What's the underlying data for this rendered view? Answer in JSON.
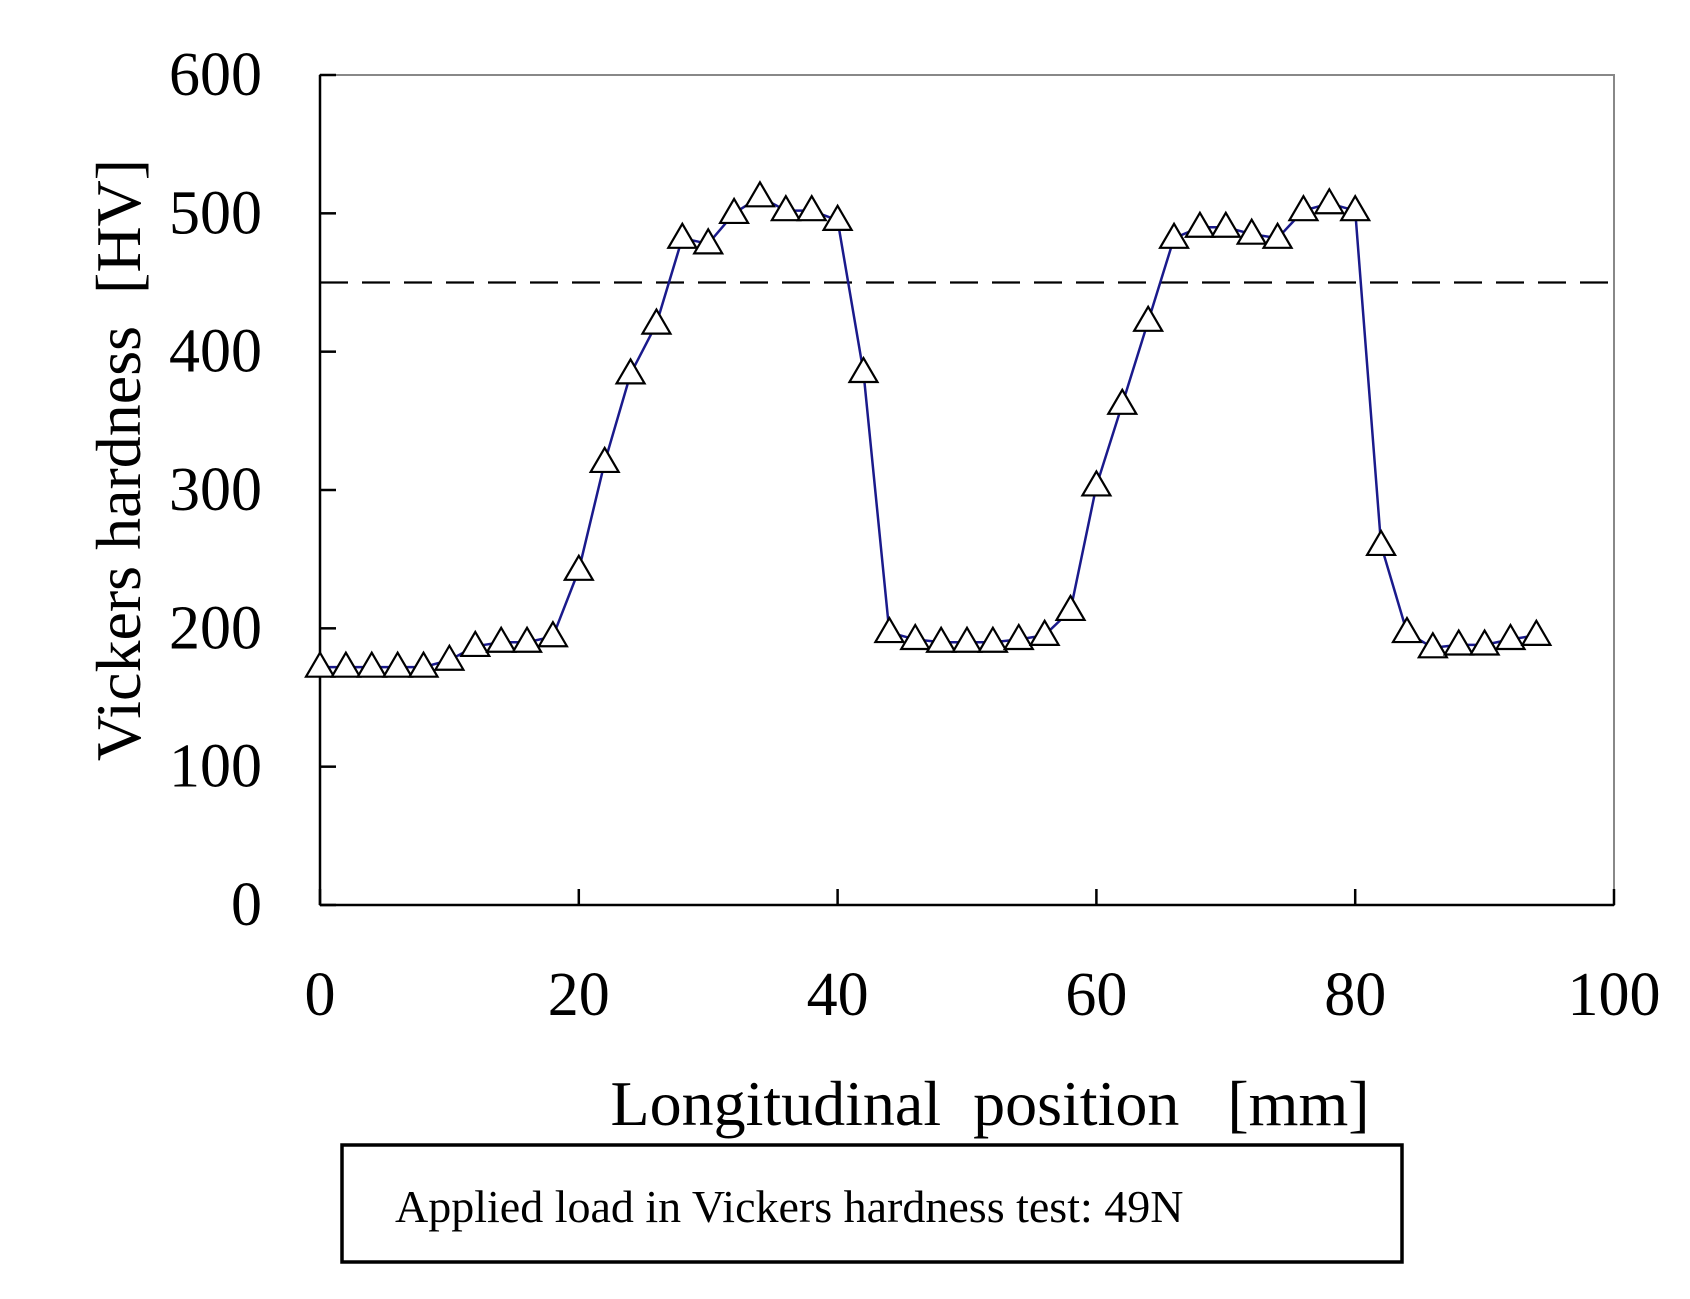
{
  "chart_data": {
    "type": "line",
    "title": "",
    "xlabel": "Longitudinal  position   [mm]",
    "ylabel": "Vickers hardness  [HV]",
    "xlim": [
      0,
      100
    ],
    "ylim": [
      0,
      600
    ],
    "xticks": [
      0,
      20,
      40,
      60,
      80,
      100
    ],
    "yticks": [
      0,
      100,
      200,
      300,
      400,
      500,
      600
    ],
    "xtick_labels": [
      "0",
      "20",
      "40",
      "60",
      "80",
      "100"
    ],
    "ytick_labels": [
      "0",
      "100",
      "200",
      "300",
      "400",
      "500",
      "600"
    ],
    "grid": false,
    "series": [
      {
        "name": "Vickers hardness",
        "marker": "triangle",
        "line_color": "#1a1a8c",
        "x": [
          0,
          2,
          4,
          6,
          8,
          10,
          12,
          14,
          16,
          18,
          20,
          22,
          24,
          26,
          28,
          30,
          32,
          34,
          36,
          38,
          40,
          42,
          44,
          46,
          48,
          50,
          52,
          54,
          56,
          58,
          60,
          62,
          64,
          66,
          68,
          70,
          72,
          74,
          76,
          78,
          80,
          82,
          84,
          86,
          88,
          90,
          92,
          94
        ],
        "y": [
          172,
          172,
          172,
          172,
          172,
          177,
          187,
          190,
          190,
          194,
          242,
          320,
          384,
          420,
          482,
          478,
          500,
          512,
          502,
          502,
          495,
          385,
          197,
          192,
          190,
          190,
          190,
          192,
          195,
          213,
          303,
          362,
          422,
          482,
          490,
          490,
          485,
          482,
          502,
          507,
          502,
          260,
          197,
          186,
          188,
          188,
          192,
          195
        ]
      }
    ],
    "reference_line": {
      "y": 450,
      "style": "dashed"
    },
    "annotation": "Applied load in Vickers hardness test: 49N"
  },
  "colors": {
    "series": "#1a1a8c",
    "axis": "#000000",
    "frame": "#888888"
  }
}
